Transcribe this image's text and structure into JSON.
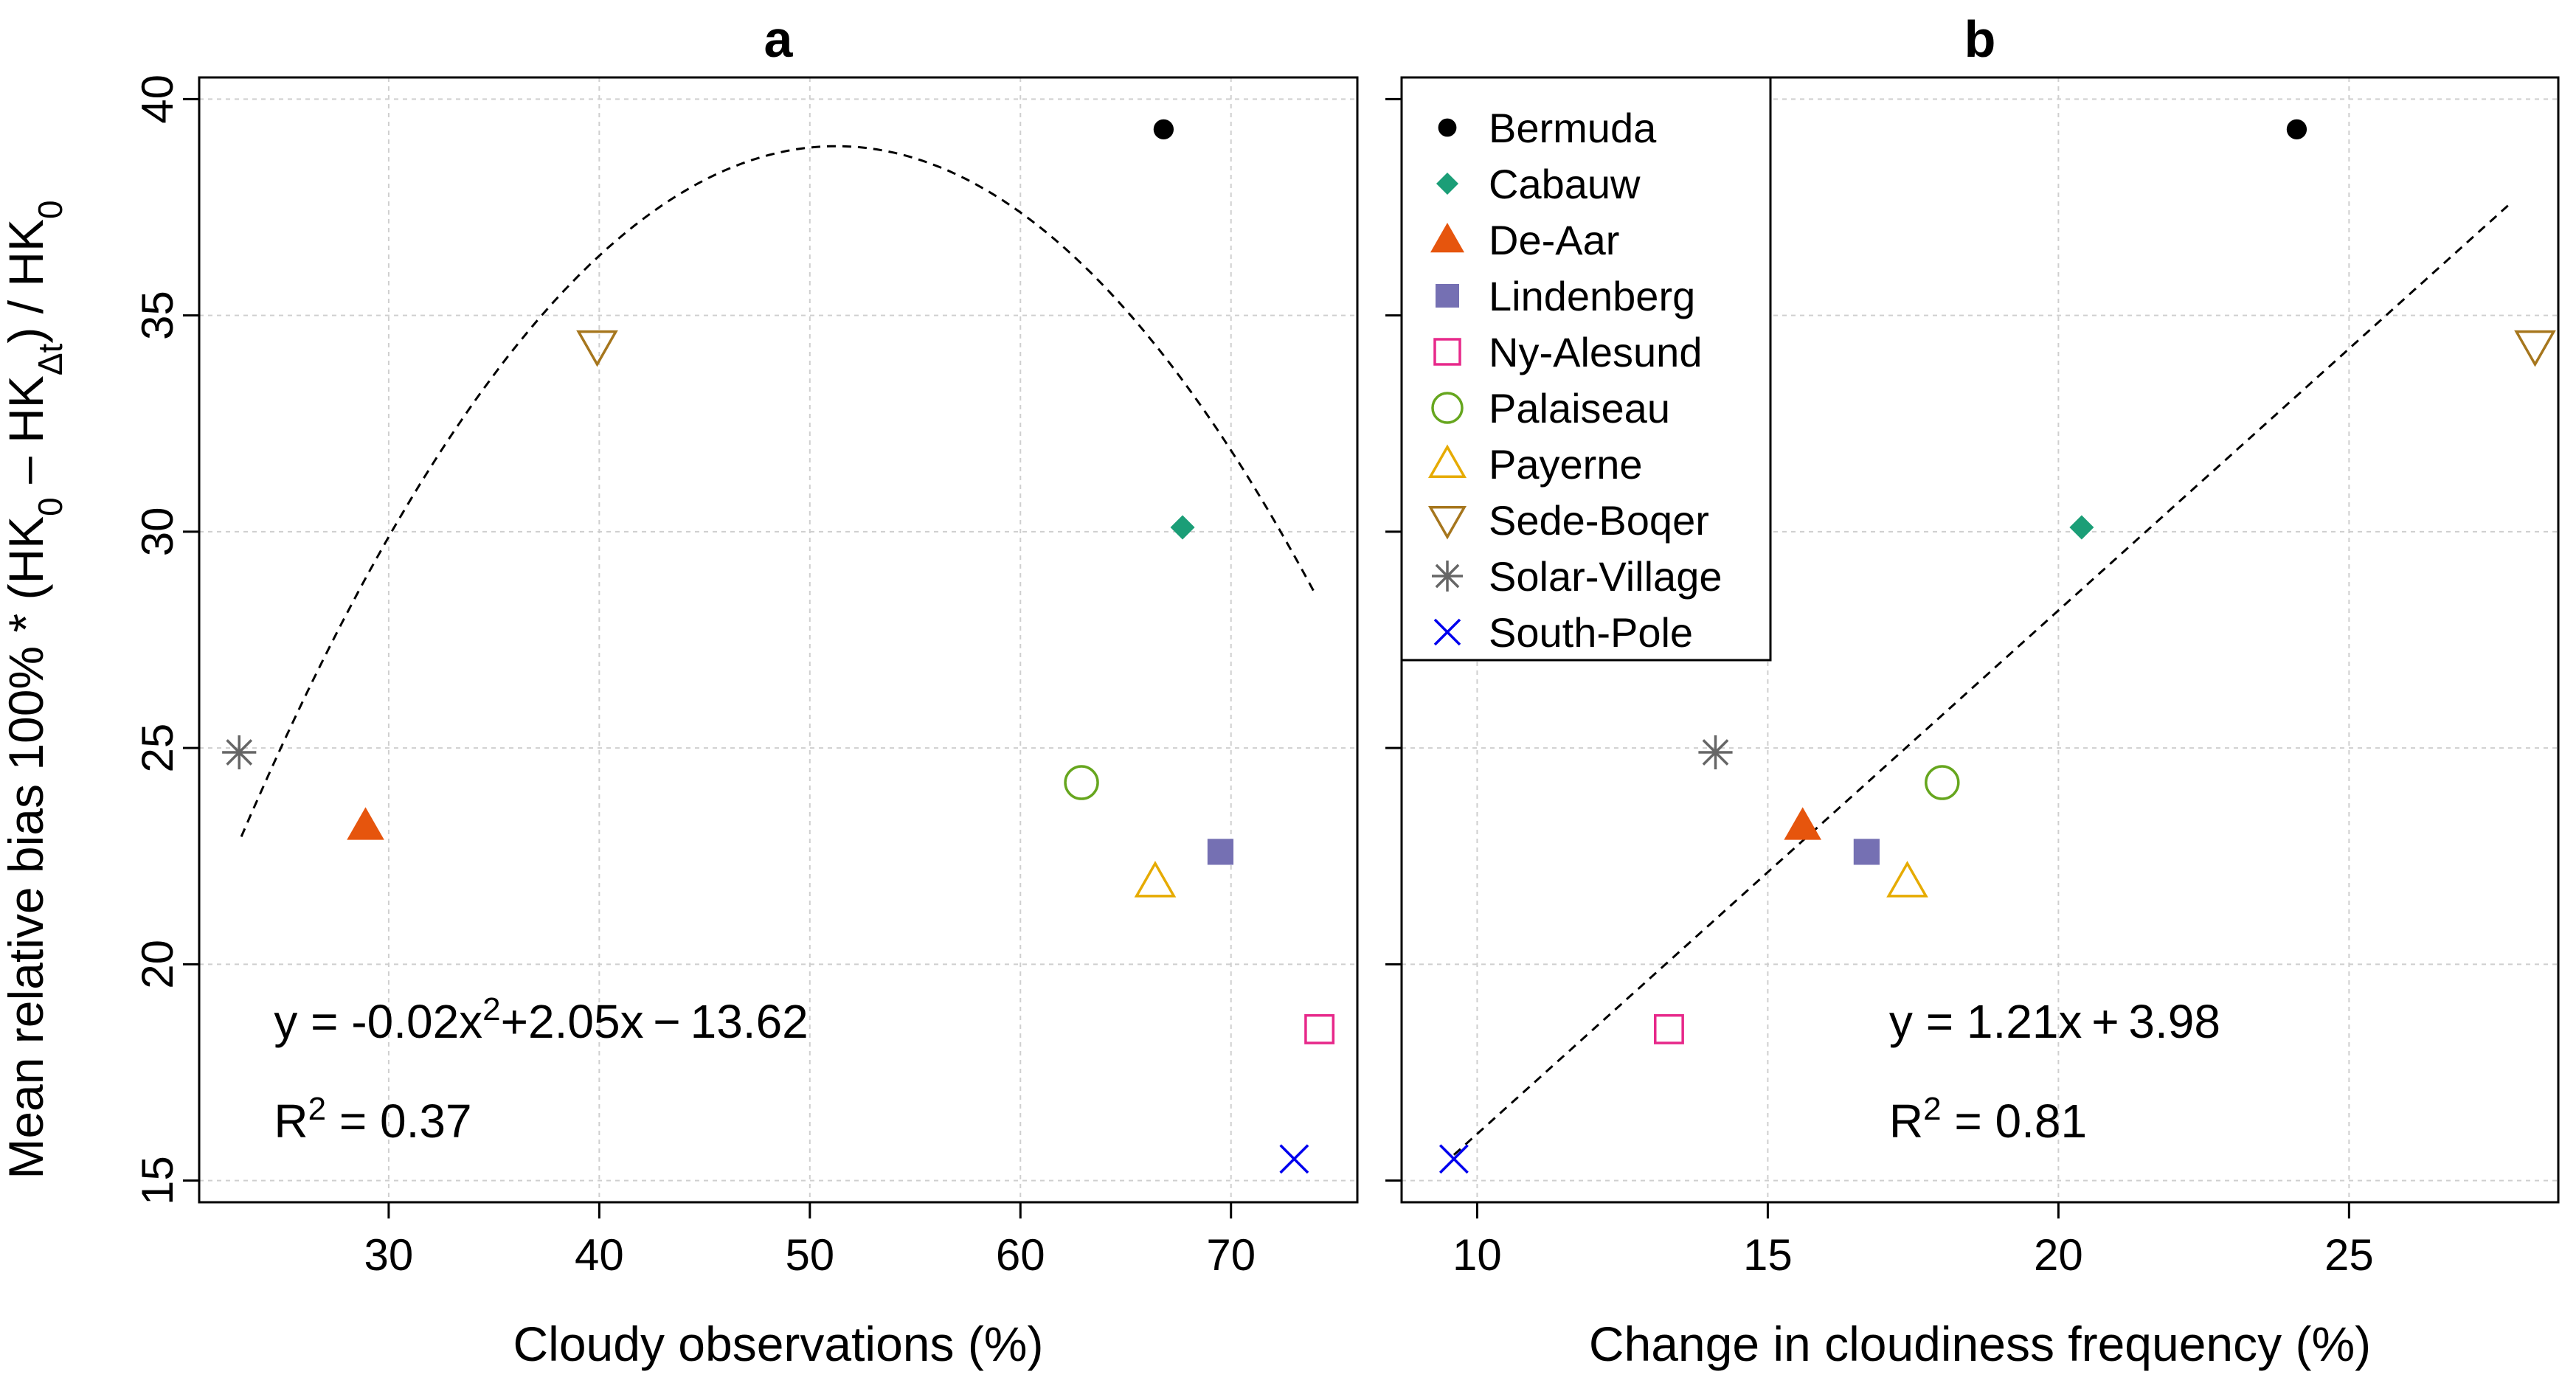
{
  "chart_data": [
    {
      "type": "scatter",
      "title": "a",
      "xlabel": "Cloudy observations (%)",
      "ylabel": "Mean relative bias 100% * (HK0 – HKΔt) / HK0",
      "xlim": [
        21,
        76
      ],
      "ylim": [
        14.5,
        40.5
      ],
      "xticks": [
        30,
        40,
        50,
        60,
        70
      ],
      "yticks": [
        15,
        20,
        25,
        30,
        35,
        40
      ],
      "grid": true,
      "points": [
        {
          "station": "Bermuda",
          "x": 66.8,
          "y": 39.3
        },
        {
          "station": "Cabauw",
          "x": 67.7,
          "y": 30.1
        },
        {
          "station": "De-Aar",
          "x": 28.9,
          "y": 23.2
        },
        {
          "station": "Lindenberg",
          "x": 69.5,
          "y": 22.6
        },
        {
          "station": "Ny-Alesund",
          "x": 74.2,
          "y": 18.5
        },
        {
          "station": "Palaiseau",
          "x": 62.9,
          "y": 24.2
        },
        {
          "station": "Payerne",
          "x": 66.4,
          "y": 21.9
        },
        {
          "station": "Sede-Boqer",
          "x": 39.9,
          "y": 34.3
        },
        {
          "station": "Solar-Village",
          "x": 22.9,
          "y": 24.9
        },
        {
          "station": "South-Pole",
          "x": 73.0,
          "y": 15.5
        }
      ],
      "fit": {
        "kind": "quadratic",
        "a": -0.02,
        "b": 2.05,
        "c": -13.62,
        "xrange": [
          23,
          74
        ]
      },
      "equation": {
        "prefix": "y = -0.02x",
        "sup": "2",
        "suffix": "+2.05x − 13.62"
      },
      "r2": {
        "prefix": "R",
        "sup": "2",
        "suffix": " = 0.37"
      }
    },
    {
      "type": "scatter",
      "title": "b",
      "xlabel": "Change in cloudiness frequency (%)",
      "xlim": [
        8.7,
        28.6
      ],
      "ylim": [
        14.5,
        40.5
      ],
      "xticks": [
        10,
        15,
        20,
        25
      ],
      "yticks": [
        15,
        20,
        25,
        30,
        35,
        40
      ],
      "grid": true,
      "points": [
        {
          "station": "Bermuda",
          "x": 24.1,
          "y": 39.3
        },
        {
          "station": "Cabauw",
          "x": 20.4,
          "y": 30.1
        },
        {
          "station": "De-Aar",
          "x": 15.6,
          "y": 23.2
        },
        {
          "station": "Lindenberg",
          "x": 16.7,
          "y": 22.6
        },
        {
          "station": "Ny-Alesund",
          "x": 13.3,
          "y": 18.5
        },
        {
          "station": "Palaiseau",
          "x": 18.0,
          "y": 24.2
        },
        {
          "station": "Payerne",
          "x": 17.4,
          "y": 21.9
        },
        {
          "station": "Sede-Boqer",
          "x": 28.2,
          "y": 34.3
        },
        {
          "station": "Solar-Village",
          "x": 14.1,
          "y": 24.9
        },
        {
          "station": "South-Pole",
          "x": 9.6,
          "y": 15.5
        }
      ],
      "fit": {
        "kind": "linear",
        "slope": 1.21,
        "intercept": 3.98,
        "xrange": [
          9.6,
          27.8
        ]
      },
      "equation": {
        "prefix": "y = 1.21x + 3.98",
        "sup": "",
        "suffix": ""
      },
      "r2": {
        "prefix": "R",
        "sup": "2",
        "suffix": " = 0.81"
      }
    }
  ],
  "legend": {
    "placement": "top-left of panel b",
    "entries": [
      {
        "label": "Bermuda",
        "symbol": "filled-circle",
        "color": "#000000"
      },
      {
        "label": "Cabauw",
        "symbol": "filled-diamond",
        "color": "#1b9e77"
      },
      {
        "label": "De-Aar",
        "symbol": "filled-triangle",
        "color": "#e6550d"
      },
      {
        "label": "Lindenberg",
        "symbol": "filled-square",
        "color": "#7570b3"
      },
      {
        "label": "Ny-Alesund",
        "symbol": "open-square",
        "color": "#e7298a"
      },
      {
        "label": "Palaiseau",
        "symbol": "open-circle",
        "color": "#66a61e"
      },
      {
        "label": "Payerne",
        "symbol": "open-triangle",
        "color": "#e6ab02"
      },
      {
        "label": "Sede-Boqer",
        "symbol": "open-triangle-down",
        "color": "#a6761d"
      },
      {
        "label": "Solar-Village",
        "symbol": "asterisk",
        "color": "#666666"
      },
      {
        "label": "South-Pole",
        "symbol": "cross",
        "color": "#0000ee"
      }
    ]
  }
}
